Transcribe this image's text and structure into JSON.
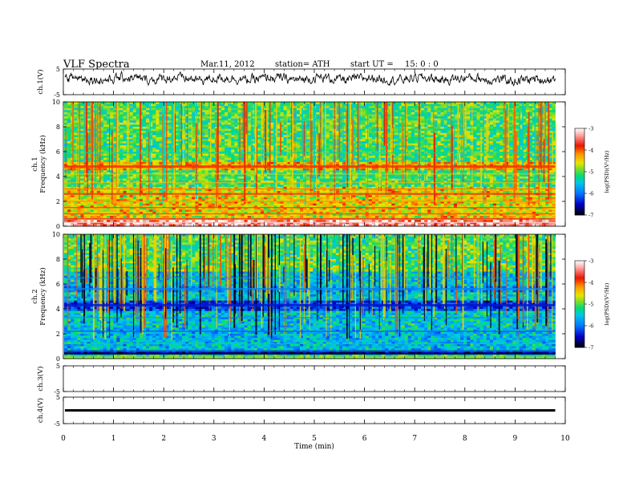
{
  "header": {
    "title": "VLF  Spectra",
    "date": "Mar.11, 2012",
    "station": "station= ATH",
    "start_label": "start  UT  =",
    "start_time": "15: 0  : 0"
  },
  "chart_data": [
    {
      "type": "line",
      "panel": "ch1-waveform",
      "ylabel": "ch.1(V)",
      "yticks": [
        "5",
        "-5"
      ],
      "ylim": [
        -5,
        5
      ],
      "xlim": [
        0,
        10
      ],
      "x_extent_min": 9.8,
      "description": "noisy waveform",
      "series": [
        {
          "x_range": [
            0,
            9.8
          ],
          "amplitude_approx": 1.3,
          "offset_approx": 1.2
        }
      ]
    },
    {
      "type": "heatmap",
      "panel": "ch1-spectrogram",
      "ylabel": "ch.1\nFrequency  (kHz)",
      "yticks": [
        "0",
        "2",
        "4",
        "6",
        "8",
        "10"
      ],
      "ylim": [
        0,
        10
      ],
      "xlim": [
        0,
        10
      ],
      "x_extent_min": 9.8,
      "colorbar": {
        "label": "log(PSD)(V²/Hz)",
        "ticks": [
          "-3",
          "-4",
          "-5",
          "-6",
          "-7"
        ],
        "range": [
          -7,
          -3
        ]
      },
      "colors": [
        "#000000",
        "#0000ff",
        "#00bfff",
        "#00e060",
        "#9acd32",
        "#ffff00",
        "#ff8c00",
        "#ff0000",
        "#ffffff"
      ]
    },
    {
      "type": "heatmap",
      "panel": "ch2-spectrogram",
      "ylabel": "ch.2\nFrequency  (kHz)",
      "yticks": [
        "0",
        "2",
        "4",
        "6",
        "8",
        "10"
      ],
      "ylim": [
        0,
        10
      ],
      "xlim": [
        0,
        10
      ],
      "x_extent_min": 9.8,
      "colorbar": {
        "label": "log(PSD)(V²/Hz)",
        "ticks": [
          "-3",
          "-4",
          "-5",
          "-6",
          "-7"
        ],
        "range": [
          -7,
          -3
        ]
      }
    },
    {
      "type": "line",
      "panel": "ch3-waveform",
      "ylabel": "ch.3(V)",
      "yticks": [
        "5",
        "-5"
      ],
      "ylim": [
        -5,
        5
      ],
      "xlim": [
        0,
        10
      ],
      "series": []
    },
    {
      "type": "line",
      "panel": "ch4-waveform",
      "ylabel": "ch.4(V)",
      "yticks": [
        "5",
        "-5"
      ],
      "ylim": [
        -5,
        5
      ],
      "xlim": [
        0,
        10
      ],
      "series": [
        {
          "x_range": [
            0,
            9.8
          ],
          "y": 0
        }
      ]
    }
  ],
  "xaxis": {
    "label": "Time  (min)",
    "ticks": [
      "0",
      "1",
      "2",
      "3",
      "4",
      "5",
      "6",
      "7",
      "8",
      "9",
      "10"
    ],
    "xlim": [
      0,
      10
    ]
  }
}
